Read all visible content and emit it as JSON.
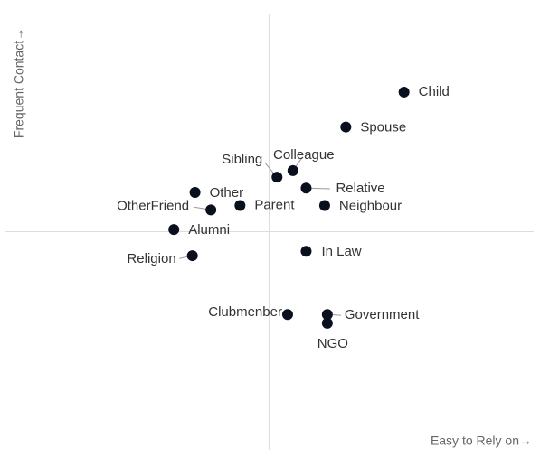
{
  "chart_data": {
    "type": "scatter",
    "xlabel": "Easy to Rely on→",
    "ylabel": "Frequent Contact→",
    "xlim": [
      -10,
      10
    ],
    "ylim": [
      -10,
      10
    ],
    "color": "#0a0f1e",
    "labels": [
      "Child",
      "Spouse",
      "Colleague",
      "Sibling",
      "Relative",
      "Other",
      "Parent",
      "Neighbour",
      "OtherFriend",
      "Alumni",
      "Religion",
      "In Law",
      "Clubmenber",
      "Government",
      "NGO"
    ],
    "x": [
      5.1,
      2.9,
      0.9,
      0.3,
      1.4,
      -2.8,
      -1.1,
      2.1,
      -2.2,
      -3.6,
      -2.9,
      1.4,
      0.7,
      2.2,
      2.2
    ],
    "values": [
      6.4,
      4.8,
      2.8,
      2.5,
      2.0,
      1.8,
      1.2,
      1.2,
      1.0,
      0.1,
      -1.1,
      -0.9,
      -3.8,
      -3.8,
      -4.2
    ]
  }
}
